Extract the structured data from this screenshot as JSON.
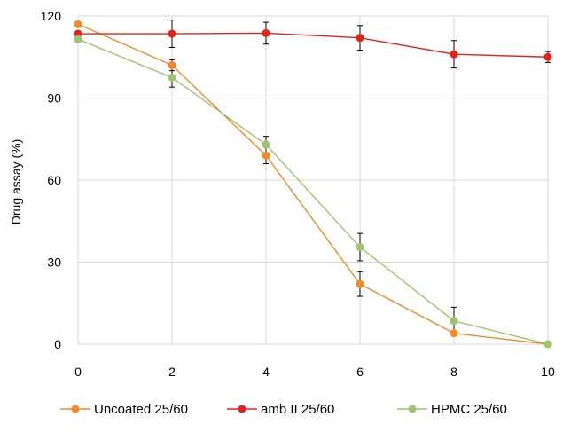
{
  "chart_data": {
    "type": "line",
    "xlabel": "",
    "ylabel": "Drug assay (%)",
    "x": [
      0,
      2,
      4,
      6,
      8,
      10
    ],
    "xlim": [
      0,
      10
    ],
    "ylim": [
      0,
      120
    ],
    "x_ticks": [
      "0",
      "2",
      "4",
      "6",
      "8",
      "10"
    ],
    "y_ticks": [
      "0",
      "30",
      "60",
      "90",
      "120"
    ],
    "grid": "vertical and horizontal",
    "legend_position": "bottom",
    "series": [
      {
        "name": "Uncoated 25/60",
        "color": "#F28C28",
        "values": [
          117,
          102,
          69,
          22,
          4,
          0
        ],
        "errors": [
          0,
          2,
          3,
          4.5,
          0,
          0
        ]
      },
      {
        "name": "amb II 25/60",
        "color": "#E2231A",
        "values": [
          113.5,
          113.5,
          113.7,
          112,
          106,
          105
        ],
        "errors": [
          0,
          5,
          4,
          4.5,
          5,
          2
        ]
      },
      {
        "name": "HPMC 25/60",
        "color": "#9DC46F",
        "values": [
          111.5,
          97.5,
          73,
          35.5,
          8.5,
          0
        ],
        "errors": [
          0,
          3.5,
          3,
          5,
          5,
          0
        ]
      }
    ]
  }
}
